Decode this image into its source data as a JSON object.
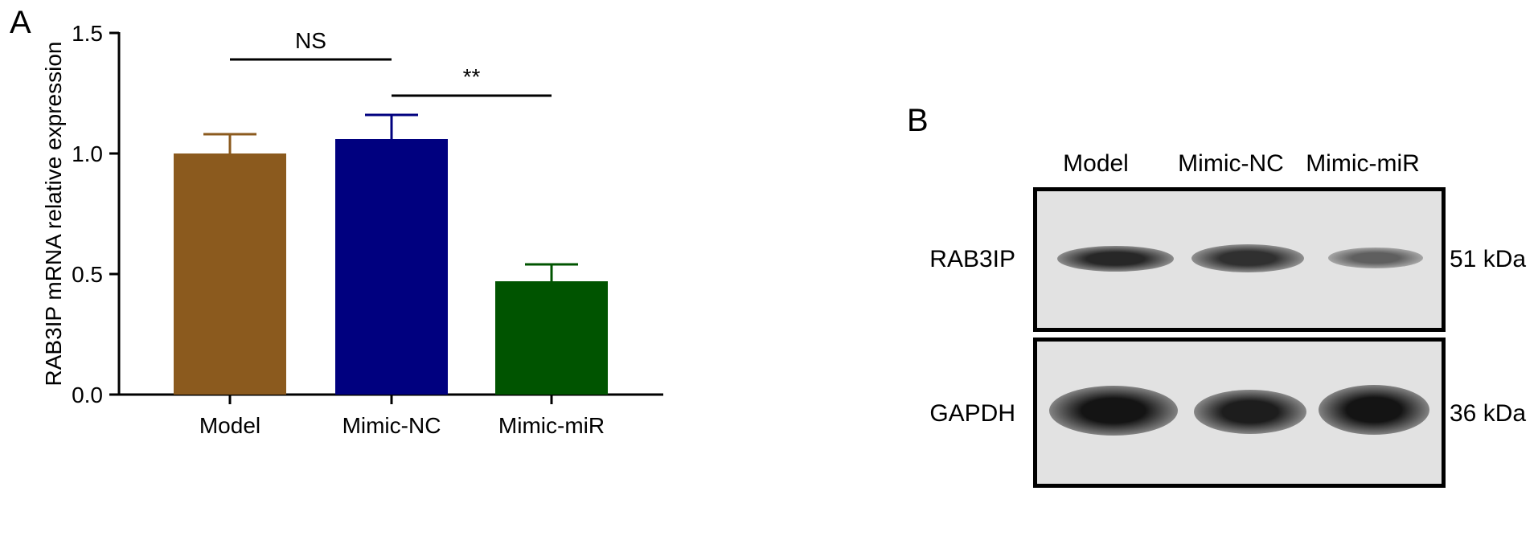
{
  "panel_a": {
    "letter": "A"
  },
  "panel_b": {
    "letter": "B",
    "lanes": [
      "Model",
      "Mimic-NC",
      "Mimic-miR"
    ],
    "blots": [
      {
        "label": "RAB3IP",
        "size": "51 kDa",
        "band_intensity": [
          0.85,
          0.8,
          0.55
        ]
      },
      {
        "label": "GAPDH",
        "size": "36 kDa",
        "band_intensity": [
          0.95,
          0.9,
          0.95
        ]
      }
    ]
  },
  "chart_data": {
    "type": "bar",
    "categories": [
      "Model",
      "Mimic-NC",
      "Mimic-miR"
    ],
    "values": [
      1.0,
      1.06,
      0.47
    ],
    "error": [
      0.08,
      0.1,
      0.07
    ],
    "colors": [
      "#8b5a1e",
      "#00007f",
      "#005400"
    ],
    "ylabel": "RAB3IP mRNA relative expression",
    "xlabel": "",
    "ylim": [
      0,
      1.5
    ],
    "yticks": [
      0.0,
      0.5,
      1.0,
      1.5
    ],
    "ytick_labels": [
      "0.0",
      "0.5",
      "1.0",
      "1.5"
    ],
    "grid": false,
    "significance": [
      {
        "from": 0,
        "to": 1,
        "label": "NS"
      },
      {
        "from": 1,
        "to": 2,
        "label": "**"
      }
    ]
  }
}
